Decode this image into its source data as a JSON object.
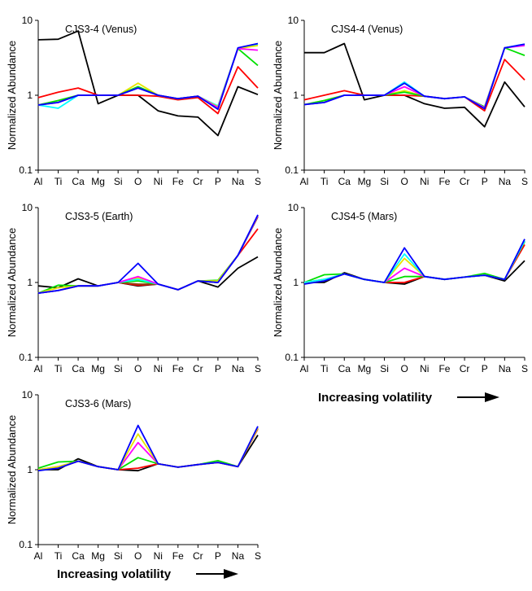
{
  "figure_note": {
    "volatility_label": "Increasing volatility"
  },
  "chart_data": [
    {
      "type": "line",
      "title": "CJS3-4 (Venus)",
      "xlabel": "",
      "ylabel": "Normalized Abundance",
      "yscale": "log",
      "ylim": [
        0.1,
        10
      ],
      "yticks": [
        "0.1",
        "1",
        "10"
      ],
      "categories": [
        "Al",
        "Ti",
        "Ca",
        "Mg",
        "Si",
        "O",
        "Ni",
        "Fe",
        "Cr",
        "P",
        "Na",
        "S"
      ],
      "series": [
        {
          "name": "black",
          "color": "#000000",
          "values": [
            5.5,
            5.6,
            7.2,
            0.77,
            1.0,
            1.0,
            0.62,
            0.53,
            0.51,
            0.29,
            1.3,
            1.02
          ]
        },
        {
          "name": "red",
          "color": "#ff0000",
          "values": [
            0.93,
            1.1,
            1.25,
            1.0,
            1.0,
            1.0,
            0.97,
            0.87,
            0.93,
            0.57,
            2.4,
            1.25
          ]
        },
        {
          "name": "cyan",
          "color": "#00ffff",
          "values": [
            0.74,
            0.67,
            1.0,
            1.0,
            1.0,
            1.3,
            1.0,
            0.9,
            0.97,
            0.72,
            4.2,
            4.8
          ]
        },
        {
          "name": "yellow",
          "color": "#e6e600",
          "values": [
            0.74,
            0.85,
            1.0,
            1.0,
            1.0,
            1.45,
            1.0,
            0.9,
            0.97,
            0.7,
            4.2,
            4.6
          ]
        },
        {
          "name": "green",
          "color": "#00e000",
          "values": [
            0.74,
            0.85,
            1.0,
            1.0,
            1.0,
            1.3,
            1.0,
            0.9,
            0.97,
            0.68,
            4.2,
            2.5
          ]
        },
        {
          "name": "magenta",
          "color": "#ff00ff",
          "values": [
            0.74,
            0.8,
            1.0,
            1.0,
            1.0,
            1.25,
            1.0,
            0.9,
            0.97,
            0.68,
            4.2,
            4.0
          ]
        },
        {
          "name": "blue",
          "color": "#0000ff",
          "values": [
            0.74,
            0.8,
            1.0,
            1.0,
            1.0,
            1.25,
            1.0,
            0.9,
            0.97,
            0.65,
            4.3,
            4.9
          ]
        }
      ]
    },
    {
      "type": "line",
      "title": "CJS4-4 (Venus)",
      "xlabel": "",
      "ylabel": "Normalized Abundance",
      "yscale": "log",
      "ylim": [
        0.1,
        10
      ],
      "yticks": [
        "0.1",
        "1",
        "10"
      ],
      "categories": [
        "Al",
        "Ti",
        "Ca",
        "Mg",
        "Si",
        "O",
        "Ni",
        "Fe",
        "Cr",
        "P",
        "Na",
        "S"
      ],
      "series": [
        {
          "name": "black",
          "color": "#000000",
          "values": [
            3.7,
            3.7,
            4.9,
            0.87,
            1.0,
            1.0,
            0.77,
            0.67,
            0.69,
            0.38,
            1.5,
            0.7
          ]
        },
        {
          "name": "red",
          "color": "#ff0000",
          "values": [
            0.87,
            1.0,
            1.15,
            1.0,
            1.0,
            1.0,
            0.97,
            0.9,
            0.95,
            0.62,
            3.0,
            1.6
          ]
        },
        {
          "name": "yellow",
          "color": "#e6e600",
          "values": [
            0.75,
            0.85,
            1.0,
            1.0,
            1.0,
            1.15,
            0.97,
            0.9,
            0.95,
            0.68,
            4.3,
            4.7
          ]
        },
        {
          "name": "green",
          "color": "#00e000",
          "values": [
            0.75,
            0.85,
            1.0,
            1.0,
            1.0,
            1.1,
            0.97,
            0.9,
            0.95,
            0.7,
            4.3,
            3.4
          ]
        },
        {
          "name": "cyan",
          "color": "#00ffff",
          "values": [
            0.75,
            0.8,
            1.0,
            1.0,
            1.0,
            1.5,
            0.97,
            0.9,
            0.95,
            0.68,
            4.3,
            4.8
          ]
        },
        {
          "name": "magenta",
          "color": "#ff00ff",
          "values": [
            0.75,
            0.8,
            1.0,
            1.0,
            1.0,
            1.3,
            0.97,
            0.9,
            0.95,
            0.68,
            4.3,
            4.6
          ]
        },
        {
          "name": "blue",
          "color": "#0000ff",
          "values": [
            0.75,
            0.8,
            1.0,
            1.0,
            1.0,
            1.45,
            0.97,
            0.9,
            0.95,
            0.66,
            4.3,
            4.8
          ]
        }
      ]
    },
    {
      "type": "line",
      "title": "CJS3-5 (Earth)",
      "xlabel": "",
      "ylabel": "Normalized Abundance",
      "yscale": "log",
      "ylim": [
        0.1,
        10
      ],
      "yticks": [
        "0.1",
        "1",
        "10"
      ],
      "categories": [
        "Al",
        "Ti",
        "Ca",
        "Mg",
        "Si",
        "O",
        "Ni",
        "Fe",
        "Cr",
        "P",
        "Na",
        "S"
      ],
      "series": [
        {
          "name": "black",
          "color": "#000000",
          "values": [
            0.9,
            0.85,
            1.12,
            0.9,
            1.0,
            0.9,
            0.95,
            0.8,
            1.05,
            0.87,
            1.55,
            2.2
          ]
        },
        {
          "name": "red",
          "color": "#ff0000",
          "values": [
            0.72,
            0.78,
            0.9,
            0.9,
            1.0,
            0.92,
            0.95,
            0.8,
            1.05,
            1.0,
            2.3,
            5.2
          ]
        },
        {
          "name": "brown",
          "color": "#8b4513",
          "values": [
            0.72,
            0.78,
            0.9,
            0.9,
            1.0,
            0.95,
            0.95,
            0.8,
            1.05,
            1.0,
            2.3,
            7.5
          ]
        },
        {
          "name": "green",
          "color": "#00e000",
          "values": [
            0.72,
            0.92,
            0.9,
            0.9,
            1.0,
            1.05,
            0.95,
            0.8,
            1.05,
            1.07,
            2.3,
            7.8
          ]
        },
        {
          "name": "yellow",
          "color": "#e6e600",
          "values": [
            0.72,
            0.85,
            0.9,
            0.9,
            1.0,
            1.15,
            0.95,
            0.8,
            1.05,
            1.05,
            2.3,
            7.8
          ]
        },
        {
          "name": "cyan",
          "color": "#00ffff",
          "values": [
            0.72,
            0.78,
            0.9,
            0.9,
            1.0,
            1.1,
            0.95,
            0.8,
            1.05,
            1.0,
            2.3,
            7.8
          ]
        },
        {
          "name": "magenta",
          "color": "#ff00ff",
          "values": [
            0.72,
            0.78,
            0.9,
            0.9,
            1.0,
            1.2,
            0.95,
            0.8,
            1.05,
            1.0,
            2.3,
            7.8
          ]
        },
        {
          "name": "blue",
          "color": "#0000ff",
          "values": [
            0.72,
            0.78,
            0.9,
            0.9,
            1.0,
            1.8,
            0.95,
            0.8,
            1.05,
            1.0,
            2.3,
            8.0
          ]
        }
      ]
    },
    {
      "type": "line",
      "title": "CJS4-5 (Mars)",
      "xlabel": "",
      "ylabel": "Normalized Abundance",
      "yscale": "log",
      "ylim": [
        0.1,
        10
      ],
      "yticks": [
        "0.1",
        "1",
        "10"
      ],
      "categories": [
        "Al",
        "Ti",
        "Ca",
        "Mg",
        "Si",
        "O",
        "Ni",
        "Fe",
        "Cr",
        "P",
        "Na",
        "S"
      ],
      "series": [
        {
          "name": "black",
          "color": "#000000",
          "values": [
            1.0,
            1.0,
            1.35,
            1.1,
            1.0,
            0.95,
            1.2,
            1.1,
            1.18,
            1.25,
            1.05,
            1.95
          ]
        },
        {
          "name": "red",
          "color": "#ff0000",
          "values": [
            1.0,
            1.05,
            1.3,
            1.1,
            1.0,
            1.0,
            1.2,
            1.1,
            1.18,
            1.25,
            1.1,
            3.2
          ]
        },
        {
          "name": "green",
          "color": "#00e000",
          "values": [
            1.0,
            1.27,
            1.3,
            1.1,
            1.0,
            1.2,
            1.2,
            1.1,
            1.18,
            1.32,
            1.1,
            3.5
          ]
        },
        {
          "name": "magenta",
          "color": "#ff00ff",
          "values": [
            1.0,
            1.1,
            1.3,
            1.1,
            1.0,
            1.55,
            1.2,
            1.1,
            1.18,
            1.25,
            1.1,
            3.6
          ]
        },
        {
          "name": "yellow",
          "color": "#e6e600",
          "values": [
            1.0,
            1.1,
            1.3,
            1.1,
            1.0,
            2.1,
            1.2,
            1.1,
            1.18,
            1.25,
            1.1,
            3.6
          ]
        },
        {
          "name": "cyan",
          "color": "#00ffff",
          "values": [
            1.0,
            1.1,
            1.3,
            1.1,
            1.0,
            2.4,
            1.2,
            1.1,
            1.18,
            1.25,
            1.1,
            3.6
          ]
        },
        {
          "name": "blue",
          "color": "#0000ff",
          "values": [
            0.95,
            1.05,
            1.3,
            1.1,
            1.0,
            2.9,
            1.2,
            1.1,
            1.18,
            1.25,
            1.1,
            3.8
          ]
        }
      ]
    },
    {
      "type": "line",
      "title": "CJS3-6 (Mars)",
      "xlabel": "",
      "ylabel": "Normalized Abundance",
      "yscale": "log",
      "ylim": [
        0.1,
        10
      ],
      "yticks": [
        "0.1",
        "1",
        "10"
      ],
      "categories": [
        "Al",
        "Ti",
        "Ca",
        "Mg",
        "Si",
        "O",
        "Ni",
        "Fe",
        "Cr",
        "P",
        "Na",
        "S"
      ],
      "series": [
        {
          "name": "black",
          "color": "#000000",
          "values": [
            1.0,
            1.0,
            1.4,
            1.1,
            1.0,
            0.97,
            1.2,
            1.08,
            1.17,
            1.25,
            1.1,
            2.9
          ]
        },
        {
          "name": "red",
          "color": "#ff0000",
          "values": [
            1.0,
            1.05,
            1.3,
            1.1,
            1.0,
            1.05,
            1.2,
            1.08,
            1.17,
            1.25,
            1.1,
            3.5
          ]
        },
        {
          "name": "green",
          "color": "#00e000",
          "values": [
            1.05,
            1.27,
            1.3,
            1.1,
            1.0,
            1.45,
            1.2,
            1.08,
            1.17,
            1.32,
            1.1,
            3.6
          ]
        },
        {
          "name": "magenta",
          "color": "#ff00ff",
          "values": [
            1.0,
            1.1,
            1.3,
            1.1,
            1.0,
            2.3,
            1.2,
            1.08,
            1.17,
            1.25,
            1.1,
            3.6
          ]
        },
        {
          "name": "yellow",
          "color": "#e6e600",
          "values": [
            1.0,
            1.1,
            1.3,
            1.1,
            1.0,
            3.0,
            1.2,
            1.08,
            1.17,
            1.25,
            1.1,
            3.6
          ]
        },
        {
          "name": "blue",
          "color": "#0000ff",
          "values": [
            0.97,
            1.05,
            1.3,
            1.1,
            1.0,
            3.9,
            1.2,
            1.08,
            1.17,
            1.25,
            1.1,
            3.8
          ]
        }
      ]
    }
  ]
}
